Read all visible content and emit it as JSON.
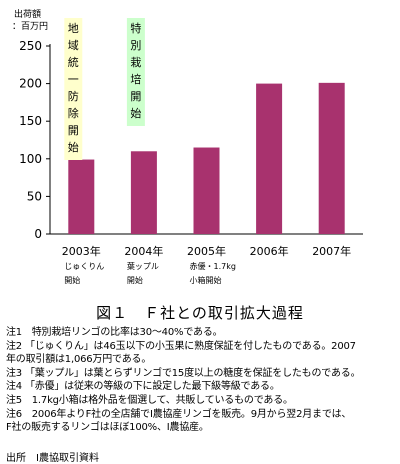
{
  "chart_data": {
    "type": "bar",
    "unit_label": [
      "出荷額",
      "：百万円"
    ],
    "ylim": [
      0,
      250
    ],
    "yticks": [
      0,
      50,
      100,
      150,
      200,
      250
    ],
    "bar_color": "#a8326e",
    "categories": [
      "2003年",
      "2004年",
      "2005年",
      "2006年",
      "2007年"
    ],
    "sublabels": [
      [
        "じゅくりん",
        "開始"
      ],
      [
        "葉ップル",
        "開始"
      ],
      [
        "赤優・1.7kg",
        "小箱開始"
      ],
      [],
      []
    ],
    "values": [
      99,
      110,
      115,
      200,
      201
    ],
    "annotations": [
      {
        "text": "地域統一防除開始",
        "category_index": 0,
        "color": "#ffffcc"
      },
      {
        "text": "特別栽培開始",
        "category_index": 1,
        "color": "#ccffcc"
      }
    ]
  },
  "caption": "図１　Ｆ社との取引拡大過程",
  "notes": [
    "注1　特別栽培リンゴの比率は30～40%である。",
    "注2 「じゅくりん」は46玉以下の小玉果に熟度保証を付したものである。2007",
    "年の取引額は1,066万円である。",
    "注3 「葉ップル」は葉とらずリンゴで15度以上の糖度を保証をしたものである。",
    "注4 「赤優」は従来の等級の下に設定した最下級等級である。",
    "注5　1.7kg小箱は格外品を個選して、共販しているものである。",
    "注6　2006年よりF社の全店舗でI農協産リンゴを販売。9月から翌2月までは、",
    "F社の販売するリンゴはほぼ100%、I農協産。"
  ],
  "source": "出所　I農協取引資料"
}
